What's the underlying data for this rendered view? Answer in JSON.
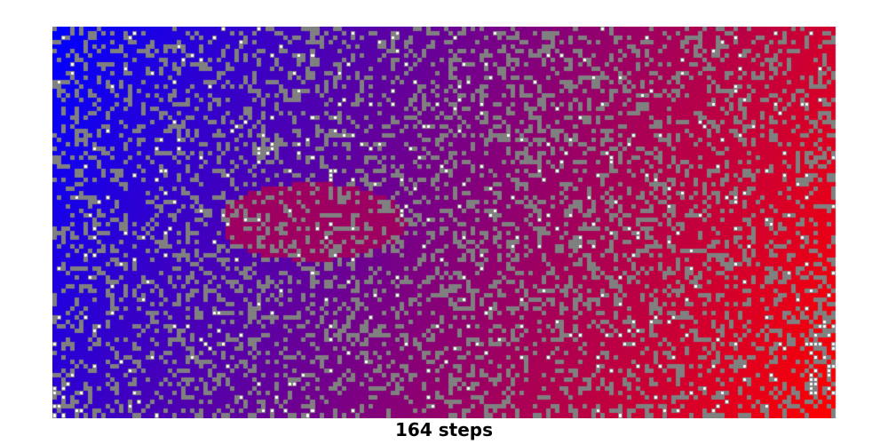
{
  "caption": "164 steps",
  "grid": {
    "cols": 176,
    "rows": 88,
    "wall_fraction": 0.26,
    "unvisited_fraction": 0.025,
    "colors": {
      "wall": "#808080",
      "unvisited": "#ffffff",
      "cell_border": "#808080",
      "gradient_start": "#0000ff",
      "gradient_end": "#ff0000"
    }
  }
}
